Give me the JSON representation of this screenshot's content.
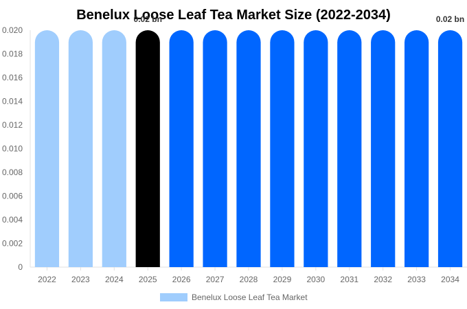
{
  "chart_data": {
    "type": "bar",
    "title": "Benelux Loose Leaf Tea Market Size (2022-2034)",
    "categories": [
      "2022",
      "2023",
      "2024",
      "2025",
      "2026",
      "2027",
      "2028",
      "2029",
      "2030",
      "2031",
      "2032",
      "2033",
      "2034"
    ],
    "series": [
      {
        "name": "Benelux Loose Leaf Tea Market",
        "values": [
          0.02,
          0.02,
          0.02,
          0.02,
          0.02,
          0.02,
          0.02,
          0.02,
          0.02,
          0.02,
          0.02,
          0.02,
          0.02
        ]
      }
    ],
    "bar_colors": [
      "#a0cdfd",
      "#a0cdfd",
      "#a0cdfd",
      "#000000",
      "#0066ff",
      "#0066ff",
      "#0066ff",
      "#0066ff",
      "#0066ff",
      "#0066ff",
      "#0066ff",
      "#0066ff",
      "#0066ff"
    ],
    "legend_color": "#a0cdfd",
    "data_labels": [
      {
        "category": "2025",
        "text": "0.02 bn"
      },
      {
        "category": "2034",
        "text": "0.02 bn"
      }
    ],
    "yticks": [
      "0",
      "0.002",
      "0.004",
      "0.006",
      "0.008",
      "0.010",
      "0.012",
      "0.014",
      "0.016",
      "0.018",
      "0.020"
    ],
    "ylim": [
      0,
      0.02
    ],
    "grid": false,
    "legend_position": "bottom"
  }
}
